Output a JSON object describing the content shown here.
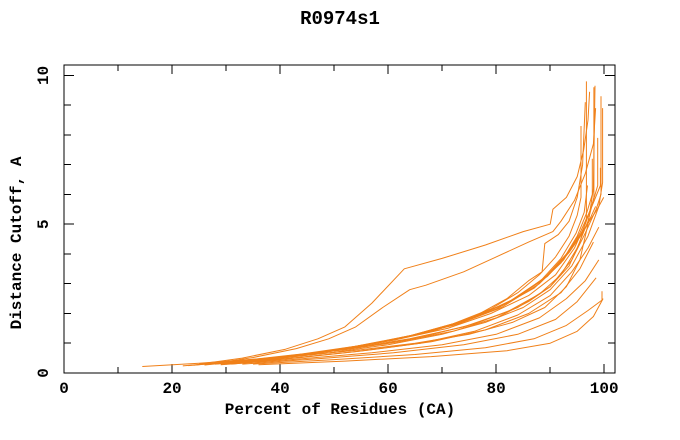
{
  "title": "R0974s1",
  "colors": {
    "line": "#F08019",
    "axis": "#000000",
    "background": "#FFFFFF"
  },
  "chart_data": {
    "type": "line",
    "title": "R0974s1",
    "xlabel": "Percent of Residues (CA)",
    "ylabel": "Distance Cutoff, A",
    "xlim": [
      0,
      102
    ],
    "ylim": [
      0,
      10.35
    ],
    "grid": false,
    "legend": "none",
    "x_major_ticks": [
      0,
      20,
      40,
      60,
      80,
      100
    ],
    "x_minor_ticks": [
      10,
      30,
      50,
      70,
      90
    ],
    "y_major_ticks": [
      0,
      5,
      10
    ],
    "y_minor_ticks": [
      1,
      2,
      3,
      4,
      6,
      7,
      8,
      9
    ],
    "series": [
      {
        "points": [
          [
            14.5,
            0.22
          ],
          [
            25,
            0.33
          ],
          [
            35,
            0.46
          ],
          [
            45,
            0.6
          ],
          [
            55,
            0.78
          ],
          [
            65,
            1.0
          ],
          [
            75,
            1.3
          ],
          [
            83,
            1.7
          ],
          [
            89,
            2.2
          ],
          [
            93,
            2.9
          ],
          [
            95.5,
            3.8
          ],
          [
            97,
            5.0
          ],
          [
            98,
            6.2
          ],
          [
            98.3,
            9.65
          ]
        ]
      },
      {
        "points": [
          [
            22,
            0.24
          ],
          [
            32,
            0.4
          ],
          [
            42,
            0.58
          ],
          [
            52,
            0.78
          ],
          [
            62,
            1.05
          ],
          [
            72,
            1.4
          ],
          [
            80,
            1.85
          ],
          [
            86,
            2.4
          ],
          [
            90,
            2.9
          ],
          [
            93.5,
            3.6
          ],
          [
            95.5,
            4.4
          ],
          [
            96.7,
            5.2
          ],
          [
            96.7,
            9.8
          ]
        ]
      },
      {
        "points": [
          [
            23,
            0.25
          ],
          [
            34,
            0.43
          ],
          [
            44,
            0.62
          ],
          [
            54,
            0.85
          ],
          [
            64,
            1.15
          ],
          [
            74,
            1.55
          ],
          [
            82,
            2.05
          ],
          [
            88,
            2.65
          ],
          [
            92,
            3.3
          ],
          [
            95,
            4.2
          ],
          [
            97,
            5.1
          ],
          [
            98.1,
            5.9
          ],
          [
            98.1,
            9.6
          ]
        ]
      },
      {
        "points": [
          [
            26,
            0.27
          ],
          [
            36,
            0.45
          ],
          [
            46,
            0.65
          ],
          [
            56,
            0.9
          ],
          [
            66,
            1.2
          ],
          [
            76,
            1.65
          ],
          [
            84,
            2.2
          ],
          [
            90,
            2.9
          ],
          [
            94,
            3.8
          ],
          [
            96.5,
            4.7
          ],
          [
            98.5,
            5.5
          ],
          [
            99.4,
            6.0
          ],
          [
            99.4,
            9.3
          ]
        ]
      },
      {
        "points": [
          [
            25,
            0.3
          ],
          [
            33,
            0.5
          ],
          [
            41,
            0.8
          ],
          [
            47,
            1.15
          ],
          [
            52,
            1.55
          ],
          [
            57,
            2.35
          ],
          [
            63,
            3.5
          ],
          [
            70,
            3.85
          ],
          [
            78,
            4.3
          ],
          [
            85,
            4.75
          ],
          [
            90,
            5.0
          ],
          [
            90.5,
            5.5
          ],
          [
            93,
            5.9
          ],
          [
            95,
            6.6
          ],
          [
            96.2,
            7.5
          ],
          [
            97,
            8.5
          ],
          [
            97.3,
            9.45
          ]
        ]
      },
      {
        "points": [
          [
            27,
            0.3
          ],
          [
            35,
            0.52
          ],
          [
            43,
            0.82
          ],
          [
            49,
            1.15
          ],
          [
            54,
            1.55
          ],
          [
            59,
            2.2
          ],
          [
            64,
            2.8
          ],
          [
            67,
            2.95
          ],
          [
            74,
            3.4
          ],
          [
            80,
            3.9
          ],
          [
            86,
            4.4
          ],
          [
            90.5,
            4.75
          ],
          [
            92,
            5.1
          ],
          [
            94.5,
            5.8
          ],
          [
            96.5,
            6.7
          ],
          [
            98,
            7.7
          ],
          [
            98.4,
            8.9
          ]
        ]
      },
      {
        "points": [
          [
            28,
            0.3
          ],
          [
            38,
            0.5
          ],
          [
            48,
            0.72
          ],
          [
            58,
            1.0
          ],
          [
            68,
            1.4
          ],
          [
            76,
            1.9
          ],
          [
            82,
            2.5
          ],
          [
            86,
            3.1
          ],
          [
            88.5,
            3.4
          ],
          [
            89,
            4.35
          ],
          [
            91.5,
            4.65
          ],
          [
            93.5,
            5.1
          ],
          [
            95,
            5.9
          ],
          [
            96,
            7.0
          ],
          [
            96.5,
            9.1
          ]
        ]
      },
      {
        "points": [
          [
            29,
            0.3
          ],
          [
            40,
            0.5
          ],
          [
            50,
            0.7
          ],
          [
            60,
            0.95
          ],
          [
            70,
            1.3
          ],
          [
            78,
            1.7
          ],
          [
            85,
            2.2
          ],
          [
            90,
            2.8
          ],
          [
            94,
            3.6
          ],
          [
            97,
            4.6
          ],
          [
            99,
            5.6
          ],
          [
            99.7,
            6.4
          ],
          [
            99.7,
            8.9
          ]
        ]
      },
      {
        "points": [
          [
            24,
            0.26
          ],
          [
            34,
            0.44
          ],
          [
            44,
            0.64
          ],
          [
            54,
            0.9
          ],
          [
            64,
            1.25
          ],
          [
            72,
            1.65
          ],
          [
            79,
            2.15
          ],
          [
            84,
            2.7
          ],
          [
            88,
            3.3
          ],
          [
            91,
            3.9
          ],
          [
            93.5,
            4.6
          ],
          [
            95,
            5.3
          ],
          [
            95.7,
            5.9
          ],
          [
            95.7,
            8.3
          ]
        ]
      },
      {
        "points": [
          [
            30,
            0.32
          ],
          [
            41,
            0.54
          ],
          [
            51,
            0.8
          ],
          [
            61,
            1.1
          ],
          [
            71,
            1.5
          ],
          [
            79,
            2.0
          ],
          [
            86,
            2.6
          ],
          [
            91,
            3.3
          ],
          [
            94.5,
            4.2
          ],
          [
            96.5,
            5.0
          ],
          [
            98,
            5.8
          ],
          [
            98.8,
            6.3
          ],
          [
            98.8,
            7.9
          ]
        ]
      },
      {
        "points": [
          [
            31,
            0.33
          ],
          [
            42,
            0.56
          ],
          [
            52,
            0.83
          ],
          [
            62,
            1.15
          ],
          [
            72,
            1.6
          ],
          [
            80,
            2.15
          ],
          [
            87,
            2.85
          ],
          [
            92,
            3.7
          ],
          [
            95,
            4.6
          ],
          [
            96.8,
            5.4
          ],
          [
            97.8,
            6.0
          ],
          [
            97.8,
            7.2
          ]
        ]
      },
      {
        "points": [
          [
            32,
            0.34
          ],
          [
            43,
            0.58
          ],
          [
            53,
            0.86
          ],
          [
            63,
            1.2
          ],
          [
            73,
            1.65
          ],
          [
            81,
            2.2
          ],
          [
            88,
            3.0
          ],
          [
            92.5,
            3.8
          ],
          [
            95.5,
            4.7
          ],
          [
            97.5,
            5.5
          ],
          [
            99.3,
            6.3
          ],
          [
            99.3,
            6.9
          ]
        ]
      },
      {
        "points": [
          [
            26,
            0.28
          ],
          [
            37,
            0.48
          ],
          [
            47,
            0.7
          ],
          [
            57,
            0.98
          ],
          [
            67,
            1.35
          ],
          [
            75,
            1.8
          ],
          [
            82,
            2.35
          ],
          [
            88,
            3.05
          ],
          [
            92,
            3.85
          ],
          [
            94.8,
            4.7
          ],
          [
            96.3,
            5.4
          ],
          [
            96.9,
            6.3
          ]
        ]
      },
      {
        "points": [
          [
            33,
            0.35
          ],
          [
            44,
            0.6
          ],
          [
            54,
            0.88
          ],
          [
            64,
            1.25
          ],
          [
            74,
            1.75
          ],
          [
            82,
            2.35
          ],
          [
            89,
            3.2
          ],
          [
            93.5,
            4.1
          ],
          [
            96.5,
            4.9
          ],
          [
            98.7,
            5.5
          ],
          [
            99.9,
            5.9
          ]
        ]
      },
      {
        "points": [
          [
            28,
            0.3
          ],
          [
            39,
            0.5
          ],
          [
            49,
            0.74
          ],
          [
            59,
            1.05
          ],
          [
            69,
            1.45
          ],
          [
            77,
            1.95
          ],
          [
            84,
            2.55
          ],
          [
            90,
            3.35
          ],
          [
            94,
            4.2
          ],
          [
            96.8,
            4.95
          ],
          [
            98.4,
            5.6
          ]
        ]
      },
      {
        "points": [
          [
            34,
            0.36
          ],
          [
            45,
            0.6
          ],
          [
            55,
            0.9
          ],
          [
            65,
            1.28
          ],
          [
            75,
            1.8
          ],
          [
            83,
            2.45
          ],
          [
            89.5,
            3.25
          ],
          [
            93.5,
            4.05
          ],
          [
            96,
            4.7
          ],
          [
            97.4,
            5.2
          ]
        ]
      },
      {
        "points": [
          [
            30,
            0.3
          ],
          [
            42,
            0.5
          ],
          [
            54,
            0.72
          ],
          [
            66,
            1.0
          ],
          [
            76,
            1.4
          ],
          [
            84,
            1.95
          ],
          [
            90,
            2.6
          ],
          [
            94,
            3.4
          ],
          [
            97,
            4.2
          ],
          [
            99,
            4.9
          ]
        ]
      },
      {
        "points": [
          [
            31,
            0.3
          ],
          [
            44,
            0.52
          ],
          [
            56,
            0.76
          ],
          [
            68,
            1.05
          ],
          [
            78,
            1.45
          ],
          [
            86,
            2.0
          ],
          [
            92,
            2.7
          ],
          [
            95.5,
            3.5
          ],
          [
            98,
            4.4
          ]
        ]
      },
      {
        "points": [
          [
            29,
            0.28
          ],
          [
            43,
            0.46
          ],
          [
            57,
            0.68
          ],
          [
            70,
            0.95
          ],
          [
            80,
            1.3
          ],
          [
            88,
            1.85
          ],
          [
            93,
            2.5
          ],
          [
            96.5,
            3.1
          ],
          [
            99,
            3.8
          ]
        ]
      },
      {
        "points": [
          [
            33,
            0.3
          ],
          [
            47,
            0.48
          ],
          [
            61,
            0.68
          ],
          [
            74,
            0.95
          ],
          [
            84,
            1.3
          ],
          [
            91,
            1.8
          ],
          [
            95,
            2.4
          ],
          [
            98.5,
            3.2
          ]
        ]
      },
      {
        "points": [
          [
            35,
            0.3
          ],
          [
            50,
            0.45
          ],
          [
            65,
            0.62
          ],
          [
            78,
            0.85
          ],
          [
            87,
            1.15
          ],
          [
            93,
            1.6
          ],
          [
            97,
            2.1
          ],
          [
            99.6,
            2.45
          ],
          [
            99.6,
            2.75
          ]
        ]
      },
      {
        "points": [
          [
            36,
            0.28
          ],
          [
            52,
            0.4
          ],
          [
            68,
            0.55
          ],
          [
            82,
            0.75
          ],
          [
            90,
            1.0
          ],
          [
            95,
            1.4
          ],
          [
            98,
            1.9
          ],
          [
            99.8,
            2.5
          ]
        ]
      }
    ]
  }
}
